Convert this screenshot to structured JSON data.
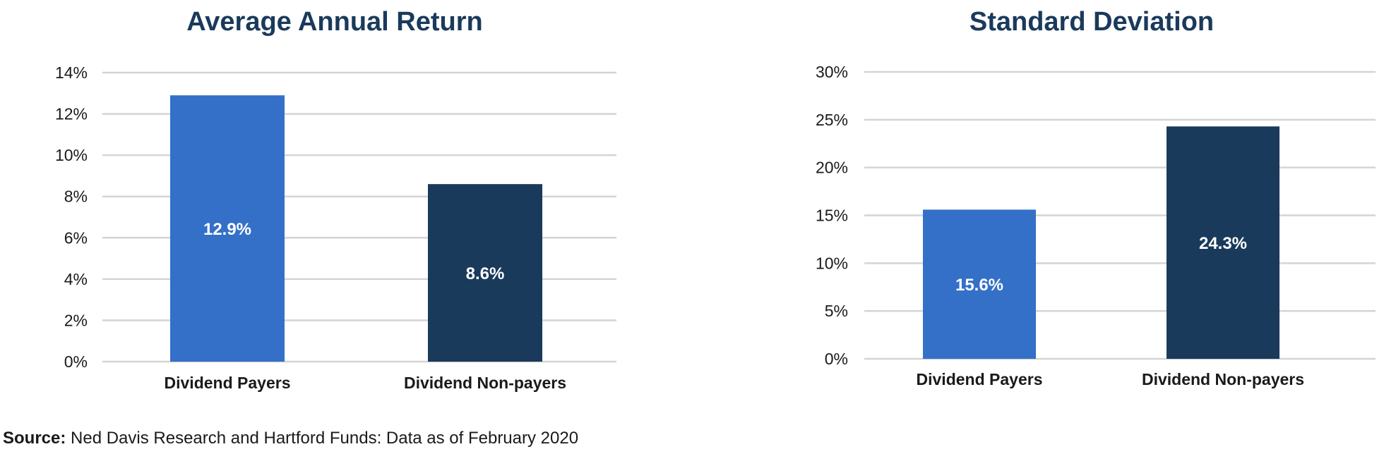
{
  "chart_data": [
    {
      "type": "bar",
      "title": "Average Annual Return",
      "categories": [
        "Dividend Payers",
        "Dividend Non-payers"
      ],
      "values": [
        12.9,
        8.6
      ],
      "value_labels": [
        "12.9%",
        "8.6%"
      ],
      "bar_colors": [
        "#3470c8",
        "#1a3a5c"
      ],
      "ylim": [
        0,
        14
      ],
      "yticks": [
        0,
        2,
        4,
        6,
        8,
        10,
        12,
        14
      ],
      "ytick_labels": [
        "0%",
        "2%",
        "4%",
        "6%",
        "8%",
        "10%",
        "12%",
        "14%"
      ],
      "grid": true
    },
    {
      "type": "bar",
      "title": "Standard Deviation",
      "categories": [
        "Dividend Payers",
        "Dividend Non-payers"
      ],
      "values": [
        15.6,
        24.3
      ],
      "value_labels": [
        "15.6%",
        "24.3%"
      ],
      "bar_colors": [
        "#3470c8",
        "#1a3a5c"
      ],
      "ylim": [
        0,
        30
      ],
      "yticks": [
        0,
        5,
        10,
        15,
        20,
        25,
        30
      ],
      "ytick_labels": [
        "0%",
        "5%",
        "10%",
        "15%",
        "20%",
        "25%",
        "30%"
      ],
      "grid": true
    }
  ],
  "source": {
    "label": "Source:",
    "text": " Ned Davis Research and Hartford Funds: Data as of February 2020"
  },
  "colors": {
    "title": "#1a3a5c",
    "grid": "#d4d4d4",
    "text": "#1a1a1a",
    "bar_label": "#ffffff"
  }
}
